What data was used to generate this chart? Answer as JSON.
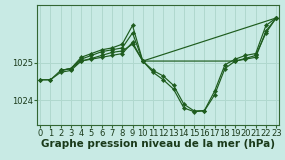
{
  "bg_color": "#c8eae4",
  "grid_color": "#b0d8ce",
  "line_color": "#1e5c1e",
  "marker_color": "#1e5c1e",
  "xlabel": "Graphe pression niveau de la mer (hPa)",
  "xlabel_fontsize": 7.5,
  "tick_fontsize": 6.0,
  "ylim": [
    1023.35,
    1026.55
  ],
  "yticks": [
    1024,
    1025
  ],
  "xlim": [
    -0.3,
    23.3
  ],
  "xticks": [
    0,
    1,
    2,
    3,
    4,
    5,
    6,
    7,
    8,
    9,
    10,
    11,
    12,
    13,
    14,
    15,
    16,
    17,
    18,
    19,
    20,
    21,
    22,
    23
  ],
  "series": [
    {
      "x": [
        0,
        1,
        2,
        3,
        4,
        5,
        6,
        7,
        8,
        9,
        10,
        11,
        12,
        13,
        14,
        15,
        16,
        17,
        18,
        19,
        20,
        21,
        22,
        23
      ],
      "y": [
        1024.55,
        1024.55,
        1024.75,
        1024.8,
        1025.05,
        1025.1,
        1025.15,
        1025.2,
        1025.25,
        1025.55,
        1025.05,
        1024.75,
        1024.55,
        1024.3,
        1023.8,
        1023.7,
        1023.72,
        1024.15,
        1024.85,
        1025.05,
        1025.1,
        1025.15,
        1025.85,
        1026.2
      ]
    },
    {
      "x": [
        2,
        3,
        4,
        5,
        6,
        7,
        8,
        9,
        10,
        11,
        12,
        13,
        14,
        15,
        16,
        17,
        18,
        19,
        20,
        21,
        22,
        23
      ],
      "y": [
        1024.8,
        1024.85,
        1025.1,
        1025.2,
        1025.3,
        1025.35,
        1025.4,
        1025.8,
        1025.05,
        1024.8,
        1024.65,
        1024.4,
        1023.9,
        1023.72,
        1023.73,
        1024.25,
        1024.95,
        1025.1,
        1025.2,
        1025.25,
        1026.0,
        1026.2
      ]
    },
    {
      "x": [
        0,
        1,
        2,
        3,
        4,
        5,
        6,
        7,
        8,
        9,
        10,
        23
      ],
      "y": [
        1024.55,
        1024.55,
        1024.8,
        1024.85,
        1025.15,
        1025.25,
        1025.35,
        1025.4,
        1025.5,
        1026.0,
        1025.05,
        1026.2
      ]
    },
    {
      "x": [
        2,
        3,
        4,
        5,
        6,
        7,
        8,
        9,
        10,
        19,
        20,
        21,
        22,
        23
      ],
      "y": [
        1024.8,
        1024.85,
        1025.05,
        1025.12,
        1025.2,
        1025.28,
        1025.32,
        1025.5,
        1025.05,
        1025.05,
        1025.12,
        1025.2,
        1025.8,
        1026.2
      ]
    }
  ]
}
